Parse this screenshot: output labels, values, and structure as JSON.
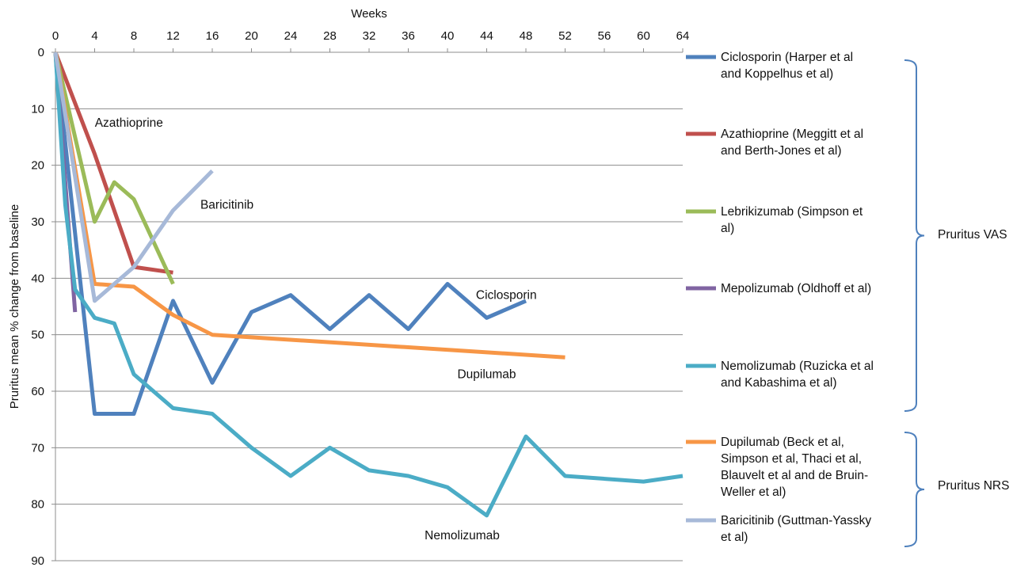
{
  "chart_data": {
    "type": "line",
    "title": "",
    "xlabel": "Weeks",
    "ylabel": "Pruritus mean % change from baseline",
    "xlim": [
      0,
      64
    ],
    "ylim": [
      0,
      90
    ],
    "y_inverted": true,
    "x_axis_position": "top",
    "x_ticks": [
      0,
      4,
      8,
      12,
      16,
      20,
      24,
      28,
      32,
      36,
      40,
      44,
      48,
      52,
      56,
      60,
      64
    ],
    "y_ticks": [
      0,
      10,
      20,
      30,
      40,
      50,
      60,
      70,
      80,
      90
    ],
    "grid": "horizontal",
    "legend_position": "right",
    "series": [
      {
        "name": "Ciclosporin (Harper et al and Koppelhus et al)",
        "legend_lines": [
          "Ciclosporin (Harper et al",
          "and Koppelhus et al)"
        ],
        "color": "#4F81BD",
        "points": [
          [
            0,
            0
          ],
          [
            4,
            64
          ],
          [
            8,
            64
          ],
          [
            12,
            44
          ],
          [
            16,
            58.5
          ],
          [
            20,
            46
          ],
          [
            24,
            43
          ],
          [
            28,
            49
          ],
          [
            32,
            43
          ],
          [
            36,
            49
          ],
          [
            40,
            41
          ],
          [
            44,
            47
          ],
          [
            48,
            44
          ]
        ]
      },
      {
        "name": "Azathioprine (Meggitt et al and Berth-Jones et al)",
        "legend_lines": [
          "Azathioprine (Meggitt et al",
          "and Berth-Jones et al)"
        ],
        "color": "#C0504D",
        "points": [
          [
            0,
            0
          ],
          [
            4,
            18
          ],
          [
            8,
            38
          ],
          [
            12,
            39
          ]
        ]
      },
      {
        "name": "Lebrikizumab (Simpson et al)",
        "legend_lines": [
          "Lebrikizumab (Simpson et",
          "al)"
        ],
        "color": "#9BBB59",
        "points": [
          [
            0,
            0
          ],
          [
            4,
            30
          ],
          [
            6,
            23
          ],
          [
            8,
            26
          ],
          [
            12,
            41
          ]
        ]
      },
      {
        "name": "Mepolizumab (Oldhoff et al)",
        "legend_lines": [
          "Mepolizumab (Oldhoff et al)"
        ],
        "color": "#8064A2",
        "points": [
          [
            0,
            0
          ],
          [
            2,
            46
          ]
        ]
      },
      {
        "name": "Nemolizumab (Ruzicka et al and Kabashima et al)",
        "legend_lines": [
          "Nemolizumab (Ruzicka et al",
          "and Kabashima et al)"
        ],
        "color": "#4BACC6",
        "points": [
          [
            0,
            0
          ],
          [
            1,
            27
          ],
          [
            2,
            42
          ],
          [
            4,
            47
          ],
          [
            6,
            48
          ],
          [
            8,
            57
          ],
          [
            12,
            63
          ],
          [
            16,
            64
          ],
          [
            20,
            70
          ],
          [
            24,
            75
          ],
          [
            28,
            70
          ],
          [
            32,
            74
          ],
          [
            36,
            75
          ],
          [
            40,
            77
          ],
          [
            44,
            82
          ],
          [
            48,
            68
          ],
          [
            52,
            75
          ],
          [
            60,
            76
          ],
          [
            64,
            75
          ]
        ]
      },
      {
        "name": "Dupilumab (Beck et al, Simpson et al, Thaci et al, Blauvelt et al and de Bruin-Weller et al)",
        "legend_lines": [
          "Dupilumab (Beck et al,",
          "Simpson et al, Thaci et al,",
          "Blauvelt et al and de Bruin-",
          "Weller et al)"
        ],
        "color": "#F79646",
        "points": [
          [
            0,
            0
          ],
          [
            4,
            41
          ],
          [
            8,
            41.5
          ],
          [
            12,
            46.5
          ],
          [
            16,
            50
          ],
          [
            52,
            54
          ]
        ]
      },
      {
        "name": "Baricitinib (Guttman-Yassky et al)",
        "legend_lines": [
          "Baricitinib (Guttman-Yassky",
          "et al)"
        ],
        "color": "#A7B9D8",
        "points": [
          [
            0,
            0
          ],
          [
            4,
            44
          ],
          [
            8,
            38
          ],
          [
            12,
            28
          ],
          [
            16,
            21
          ]
        ]
      }
    ],
    "annotations": [
      {
        "text": "Azathioprine",
        "x": 7.5,
        "y": 12.5
      },
      {
        "text": "Baricitinib",
        "x": 17.5,
        "y": 27
      },
      {
        "text": "Ciclosporin",
        "x": 46,
        "y": 43
      },
      {
        "text": "Dupilumab",
        "x": 44,
        "y": 57
      },
      {
        "text": "Nemolizumab",
        "x": 41.5,
        "y": 85.5
      }
    ],
    "groups": [
      {
        "label": "Pruritus VAS",
        "series": [
          0,
          1,
          2,
          3,
          4
        ]
      },
      {
        "label": "Pruritus NRS",
        "series": [
          5,
          6
        ]
      }
    ]
  }
}
